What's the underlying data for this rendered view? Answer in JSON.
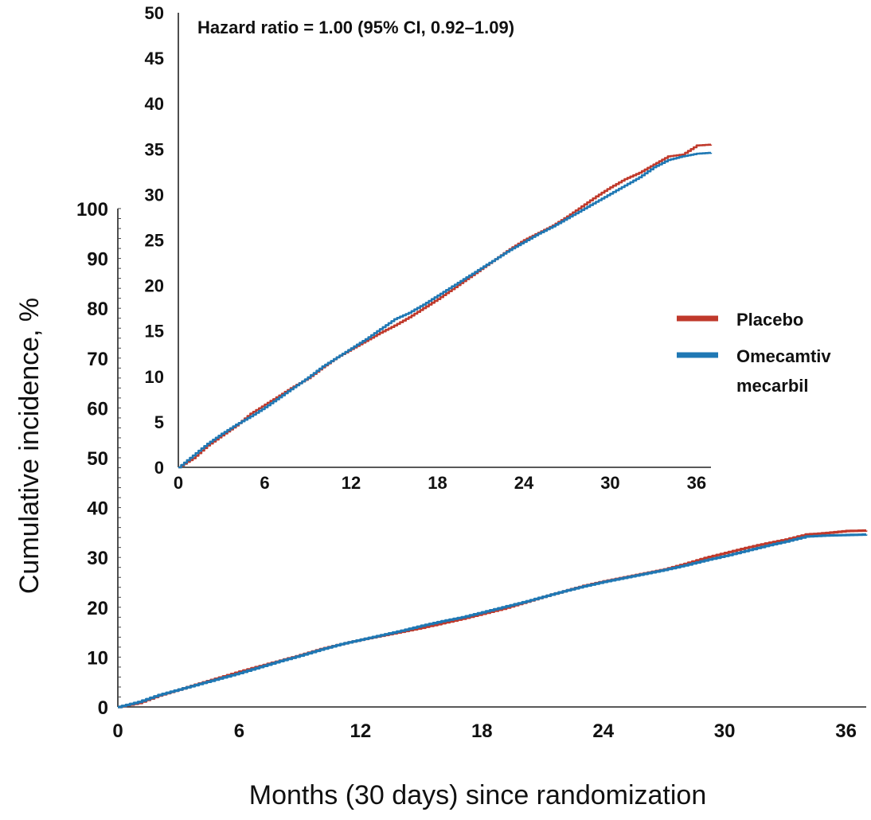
{
  "chart_data": [
    {
      "type": "line",
      "role": "main",
      "xlabel": "Months (30 days) since randomization",
      "ylabel": "Cumulative incidence, %",
      "xlim": [
        0,
        37
      ],
      "ylim": [
        0,
        100
      ],
      "x_ticks": [
        0,
        6,
        12,
        18,
        24,
        30,
        36
      ],
      "y_ticks": [
        0,
        10,
        20,
        30,
        40,
        50,
        60,
        70,
        80,
        90,
        100
      ],
      "grid": false,
      "series": [
        {
          "name": "Placebo",
          "color": "#c0392b",
          "points": [
            [
              0,
              0
            ],
            [
              1,
              0.8
            ],
            [
              2,
              2.3
            ],
            [
              3,
              3.5
            ],
            [
              4,
              4.7
            ],
            [
              5,
              5.9
            ],
            [
              6,
              7.1
            ],
            [
              7,
              8.2
            ],
            [
              8,
              9.3
            ],
            [
              9,
              10.4
            ],
            [
              10,
              11.6
            ],
            [
              11,
              12.6
            ],
            [
              12,
              13.5
            ],
            [
              13,
              14.3
            ],
            [
              14,
              15.1
            ],
            [
              15,
              15.9
            ],
            [
              16,
              16.8
            ],
            [
              17,
              17.7
            ],
            [
              18,
              18.7
            ],
            [
              19,
              19.7
            ],
            [
              20,
              20.9
            ],
            [
              21,
              22.1
            ],
            [
              22,
              23.2
            ],
            [
              23,
              24.3
            ],
            [
              24,
              25.2
            ],
            [
              25,
              26
            ],
            [
              26,
              26.8
            ],
            [
              27,
              27.6
            ],
            [
              28,
              28.7
            ],
            [
              29,
              29.9
            ],
            [
              30,
              30.9
            ],
            [
              31,
              31.9
            ],
            [
              32,
              32.8
            ],
            [
              33,
              33.6
            ],
            [
              34,
              34.6
            ],
            [
              35,
              34.9
            ],
            [
              36,
              35.3
            ],
            [
              37,
              35.4
            ]
          ]
        },
        {
          "name": "Omecamtiv mecarbil",
          "color": "#1f78b4",
          "points": [
            [
              0,
              0
            ],
            [
              1,
              1.0
            ],
            [
              2,
              2.4
            ],
            [
              3,
              3.5
            ],
            [
              4,
              4.6
            ],
            [
              5,
              5.7
            ],
            [
              6,
              6.8
            ],
            [
              7,
              8.0
            ],
            [
              8,
              9.2
            ],
            [
              9,
              10.3
            ],
            [
              10,
              11.5
            ],
            [
              11,
              12.6
            ],
            [
              12,
              13.5
            ],
            [
              13,
              14.4
            ],
            [
              14,
              15.3
            ],
            [
              15,
              16.3
            ],
            [
              16,
              17.2
            ],
            [
              17,
              18.0
            ],
            [
              18,
              19.0
            ],
            [
              19,
              20.0
            ],
            [
              20,
              21.0
            ],
            [
              21,
              22.1
            ],
            [
              22,
              23.2
            ],
            [
              23,
              24.2
            ],
            [
              24,
              25.1
            ],
            [
              25,
              25.9
            ],
            [
              26,
              26.7
            ],
            [
              27,
              27.5
            ],
            [
              28,
              28.4
            ],
            [
              29,
              29.4
            ],
            [
              30,
              30.3
            ],
            [
              31,
              31.3
            ],
            [
              32,
              32.3
            ],
            [
              33,
              33.2
            ],
            [
              34,
              34.2
            ],
            [
              35,
              34.4
            ],
            [
              36,
              34.5
            ],
            [
              37,
              34.6
            ]
          ]
        }
      ]
    },
    {
      "type": "line",
      "role": "inset",
      "xlim": [
        0,
        37
      ],
      "ylim": [
        0,
        50
      ],
      "x_ticks": [
        0,
        6,
        12,
        18,
        24,
        30,
        36
      ],
      "y_ticks": [
        0,
        5,
        10,
        15,
        20,
        25,
        30,
        35,
        40,
        45,
        50
      ],
      "annotation": "Hazard ratio = 1.00 (95% CI, 0.92–1.09)",
      "legend": {
        "position": "right",
        "items": [
          {
            "label": "Placebo",
            "color": "#c0392b"
          },
          {
            "label_lines": [
              "Omecamtiv",
              "mecarbil"
            ],
            "color": "#1f78b4"
          }
        ]
      },
      "series": [
        {
          "name": "Placebo",
          "color": "#c0392b",
          "points": [
            [
              0,
              0
            ],
            [
              1,
              1.0
            ],
            [
              2,
              2.4
            ],
            [
              3,
              3.5
            ],
            [
              4,
              4.6
            ],
            [
              5,
              5.9
            ],
            [
              6,
              6.9
            ],
            [
              7,
              7.9
            ],
            [
              8,
              8.9
            ],
            [
              9,
              9.8
            ],
            [
              10,
              11.0
            ],
            [
              11,
              12.1
            ],
            [
              12,
              13.0
            ],
            [
              13,
              13.9
            ],
            [
              14,
              14.8
            ],
            [
              15,
              15.6
            ],
            [
              16,
              16.5
            ],
            [
              17,
              17.5
            ],
            [
              18,
              18.5
            ],
            [
              19,
              19.6
            ],
            [
              20,
              20.7
            ],
            [
              21,
              21.8
            ],
            [
              22,
              22.9
            ],
            [
              23,
              24.0
            ],
            [
              24,
              25.0
            ],
            [
              25,
              25.8
            ],
            [
              26,
              26.6
            ],
            [
              27,
              27.6
            ],
            [
              28,
              28.7
            ],
            [
              29,
              29.8
            ],
            [
              30,
              30.8
            ],
            [
              31,
              31.7
            ],
            [
              32,
              32.4
            ],
            [
              33,
              33.3
            ],
            [
              34,
              34.2
            ],
            [
              35,
              34.4
            ],
            [
              36,
              35.4
            ],
            [
              37,
              35.5
            ]
          ]
        },
        {
          "name": "Omecamtiv mecarbil",
          "color": "#1f78b4",
          "points": [
            [
              0,
              0
            ],
            [
              1,
              1.3
            ],
            [
              2,
              2.6
            ],
            [
              3,
              3.7
            ],
            [
              4,
              4.7
            ],
            [
              5,
              5.6
            ],
            [
              6,
              6.6
            ],
            [
              7,
              7.7
            ],
            [
              8,
              8.8
            ],
            [
              9,
              9.9
            ],
            [
              10,
              11.1
            ],
            [
              11,
              12.1
            ],
            [
              12,
              13.1
            ],
            [
              13,
              14.1
            ],
            [
              14,
              15.2
            ],
            [
              15,
              16.3
            ],
            [
              16,
              17.0
            ],
            [
              17,
              17.9
            ],
            [
              18,
              18.9
            ],
            [
              19,
              19.9
            ],
            [
              20,
              20.9
            ],
            [
              21,
              21.9
            ],
            [
              22,
              22.9
            ],
            [
              23,
              23.9
            ],
            [
              24,
              24.8
            ],
            [
              25,
              25.7
            ],
            [
              26,
              26.5
            ],
            [
              27,
              27.4
            ],
            [
              28,
              28.3
            ],
            [
              29,
              29.2
            ],
            [
              30,
              30.1
            ],
            [
              31,
              31.0
            ],
            [
              32,
              31.9
            ],
            [
              33,
              33.0
            ],
            [
              34,
              33.8
            ],
            [
              35,
              34.2
            ],
            [
              36,
              34.5
            ],
            [
              37,
              34.6
            ]
          ]
        }
      ]
    }
  ]
}
